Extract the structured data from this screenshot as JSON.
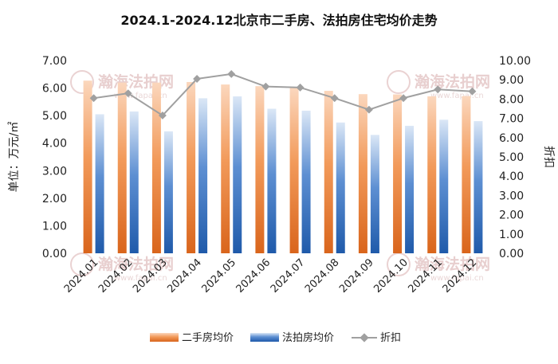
{
  "chart_data": {
    "type": "bar",
    "title": "2024.1-2024.12北京市二手房、法拍房住宅均价走势",
    "ylabel": "单位：万元/㎡",
    "y2label": "折扣",
    "categories": [
      "2024.01",
      "2024.02",
      "2024.03",
      "2024.04",
      "2024.05",
      "2024.06",
      "2024.07",
      "2024.08",
      "2024.09",
      "2024.10",
      "2024.11",
      "2024.12"
    ],
    "series": [
      {
        "name": "二手房均价",
        "axis": "left",
        "kind": "bar",
        "color": "#ed7d31",
        "values": [
          6.27,
          6.2,
          6.2,
          6.22,
          6.13,
          6.07,
          6.0,
          5.9,
          5.78,
          5.77,
          5.7,
          5.71
        ]
      },
      {
        "name": "法拍房均价",
        "axis": "left",
        "kind": "bar",
        "color": "#2f6cc0",
        "values": [
          5.05,
          5.15,
          4.43,
          5.63,
          5.7,
          5.25,
          5.18,
          4.75,
          4.3,
          4.63,
          4.85,
          4.8
        ]
      },
      {
        "name": "折扣",
        "axis": "right",
        "kind": "line",
        "color": "#a0a0a0",
        "values": [
          8.05,
          8.3,
          7.15,
          9.05,
          9.3,
          8.65,
          8.6,
          8.05,
          7.45,
          8.05,
          8.5,
          8.4
        ]
      }
    ],
    "legend_labels": [
      "二手房均价",
      "法拍房均价",
      "折扣"
    ],
    "legend_line_label": "折扣",
    "legend_line_label_display": "折扣",
    "ylim": [
      0,
      7
    ],
    "y2lim": [
      0,
      10
    ],
    "yticks": [
      "0.00",
      "1.00",
      "2.00",
      "3.00",
      "4.00",
      "5.00",
      "6.00",
      "7.00"
    ],
    "y2ticks": [
      "0.00",
      "1.00",
      "2.00",
      "3.00",
      "4.00",
      "5.00",
      "6.00",
      "7.00",
      "8.00",
      "9.00",
      "10.00"
    ],
    "legend_position": "bottom",
    "grid": false
  },
  "watermark": {
    "text": "瀚海法拍网",
    "url": "www.fapai.cn"
  }
}
